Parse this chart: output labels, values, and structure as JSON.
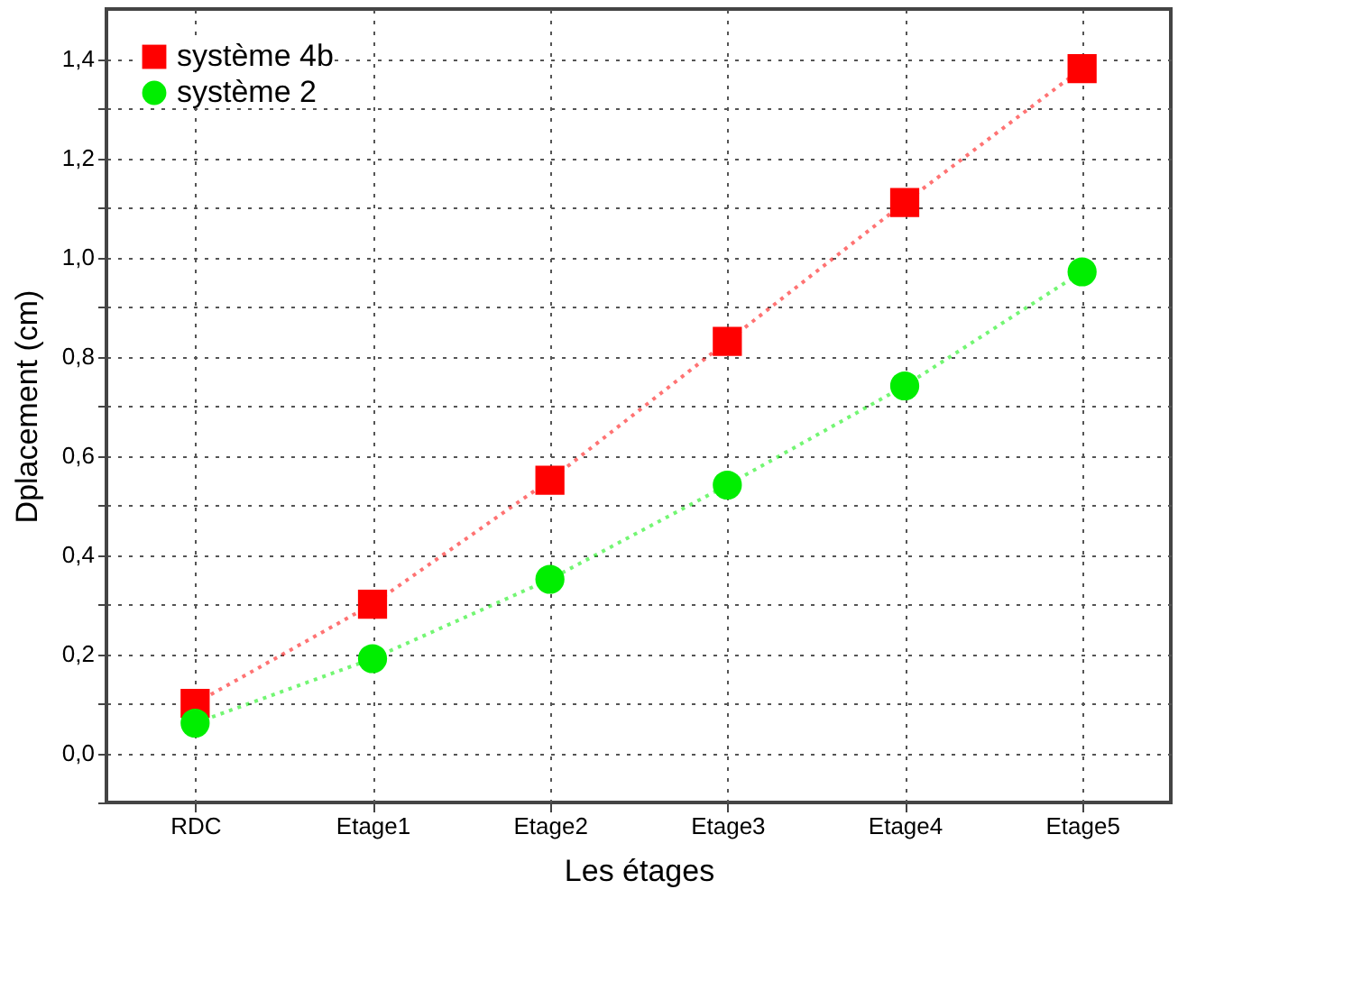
{
  "chart_data": {
    "type": "line",
    "xlabel": "Les étages",
    "ylabel": "Dplacement (cm)",
    "categories": [
      "RDC",
      "Etage1",
      "Etage2",
      "Etage3",
      "Etage4",
      "Etage5"
    ],
    "series": [
      {
        "name": "système 4b",
        "color": "#ff0000",
        "marker": "square",
        "line_style": "dotted",
        "values": [
          0.1,
          0.3,
          0.55,
          0.83,
          1.11,
          1.38
        ]
      },
      {
        "name": "système 2",
        "color": "#00ee00",
        "marker": "circle",
        "line_style": "dotted",
        "values": [
          0.06,
          0.19,
          0.35,
          0.54,
          0.74,
          0.97
        ]
      }
    ],
    "ylim": [
      -0.1,
      1.5
    ],
    "yticks": [
      {
        "value": -0.1,
        "label": null
      },
      {
        "value": 0,
        "label": "0,0"
      },
      {
        "value": 0.1,
        "label": null
      },
      {
        "value": 0.2,
        "label": "0,2"
      },
      {
        "value": 0.3,
        "label": null
      },
      {
        "value": 0.4,
        "label": "0,4"
      },
      {
        "value": 0.5,
        "label": null
      },
      {
        "value": 0.6,
        "label": "0,6"
      },
      {
        "value": 0.7,
        "label": null
      },
      {
        "value": 0.8,
        "label": "0,8"
      },
      {
        "value": 0.9,
        "label": null
      },
      {
        "value": 1.0,
        "label": "1,0"
      },
      {
        "value": 1.1,
        "label": null
      },
      {
        "value": 1.2,
        "label": "1,2"
      },
      {
        "value": 1.3,
        "label": null
      },
      {
        "value": 1.4,
        "label": "1,4"
      }
    ],
    "grid": true,
    "legend": "top left"
  }
}
